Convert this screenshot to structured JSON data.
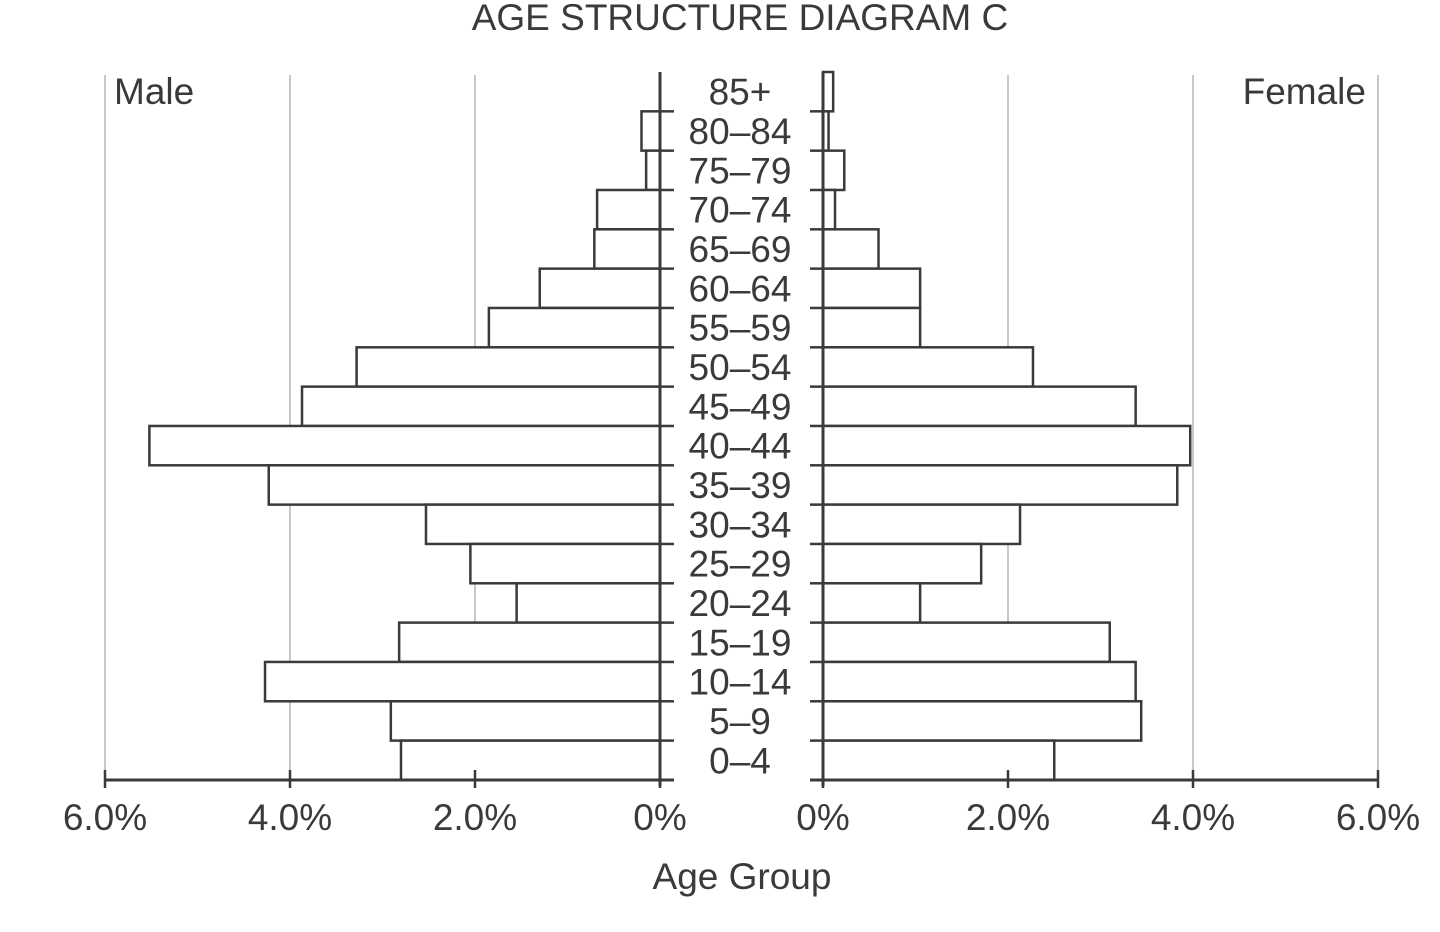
{
  "chart_data": {
    "type": "bar",
    "subtype": "population-pyramid",
    "title": "AGE STRUCTURE DIAGRAM C",
    "xlabel": "Age Group",
    "ylabel": "",
    "left_label": "Male",
    "right_label": "Female",
    "categories": [
      "85+",
      "80–84",
      "75–79",
      "70–74",
      "65–69",
      "60–64",
      "55–59",
      "50–54",
      "45–49",
      "40–44",
      "35–39",
      "30–34",
      "25–29",
      "20–24",
      "15–19",
      "10–14",
      "5–9",
      "0–4"
    ],
    "series": [
      {
        "name": "Male",
        "values": [
          0.0,
          0.2,
          0.15,
          0.68,
          0.71,
          1.3,
          1.85,
          3.28,
          3.87,
          5.52,
          4.23,
          2.53,
          2.05,
          1.55,
          2.82,
          4.27,
          2.91,
          2.8
        ]
      },
      {
        "name": "Female",
        "values": [
          0.11,
          0.06,
          0.23,
          0.13,
          0.6,
          1.05,
          1.05,
          2.27,
          3.38,
          3.97,
          3.83,
          2.13,
          1.71,
          1.05,
          3.1,
          3.38,
          3.44,
          2.5
        ]
      }
    ],
    "x_ticks_male": [
      "6.0%",
      "4.0%",
      "2.0%",
      "0%"
    ],
    "x_ticks_female": [
      "0%",
      "2.0%",
      "4.0%",
      "6.0%"
    ],
    "tick_values": [
      6,
      4,
      2,
      0
    ],
    "xlim": [
      0,
      6
    ],
    "grid": true,
    "units": "% of population",
    "colors": {
      "bar_fill": "#ffffff",
      "bar_stroke": "#3a3a3a",
      "grid": "#c8c8c8",
      "axis": "#3a3a3a"
    }
  }
}
